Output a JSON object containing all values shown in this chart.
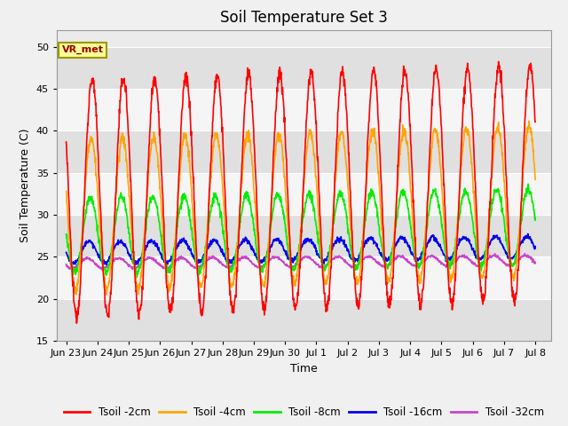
{
  "title": "Soil Temperature Set 3",
  "xlabel": "Time",
  "ylabel": "Soil Temperature (C)",
  "ylim": [
    15,
    52
  ],
  "xlim": [
    -0.3,
    15.5
  ],
  "yticks": [
    15,
    20,
    25,
    30,
    35,
    40,
    45,
    50
  ],
  "xtick_labels": [
    "Jun 23",
    "Jun 24",
    "Jun 25",
    "Jun 26",
    "Jun 27",
    "Jun 28",
    "Jun 29",
    "Jun 30",
    "Jul 1",
    "Jul 2",
    "Jul 3",
    "Jul 4",
    "Jul 5",
    "Jul 6",
    "Jul 7",
    "Jul 8"
  ],
  "xtick_positions": [
    0,
    1,
    2,
    3,
    4,
    5,
    6,
    7,
    8,
    9,
    10,
    11,
    12,
    13,
    14,
    15
  ],
  "colors": {
    "Tsoil -2cm": "#FF0000",
    "Tsoil -4cm": "#FFA500",
    "Tsoil -8cm": "#00EE00",
    "Tsoil -16cm": "#0000EE",
    "Tsoil -32cm": "#CC44CC"
  },
  "annotation_text": "VR_met",
  "annotation_bg": "#FFFF99",
  "annotation_border": "#999900",
  "background_color": "#F0F0F0",
  "plot_bg": "#EBEBEB",
  "grid_color": "#FFFFFF",
  "title_fontsize": 12,
  "band_color": "#E0E0E0",
  "band_color2": "#F5F5F5"
}
